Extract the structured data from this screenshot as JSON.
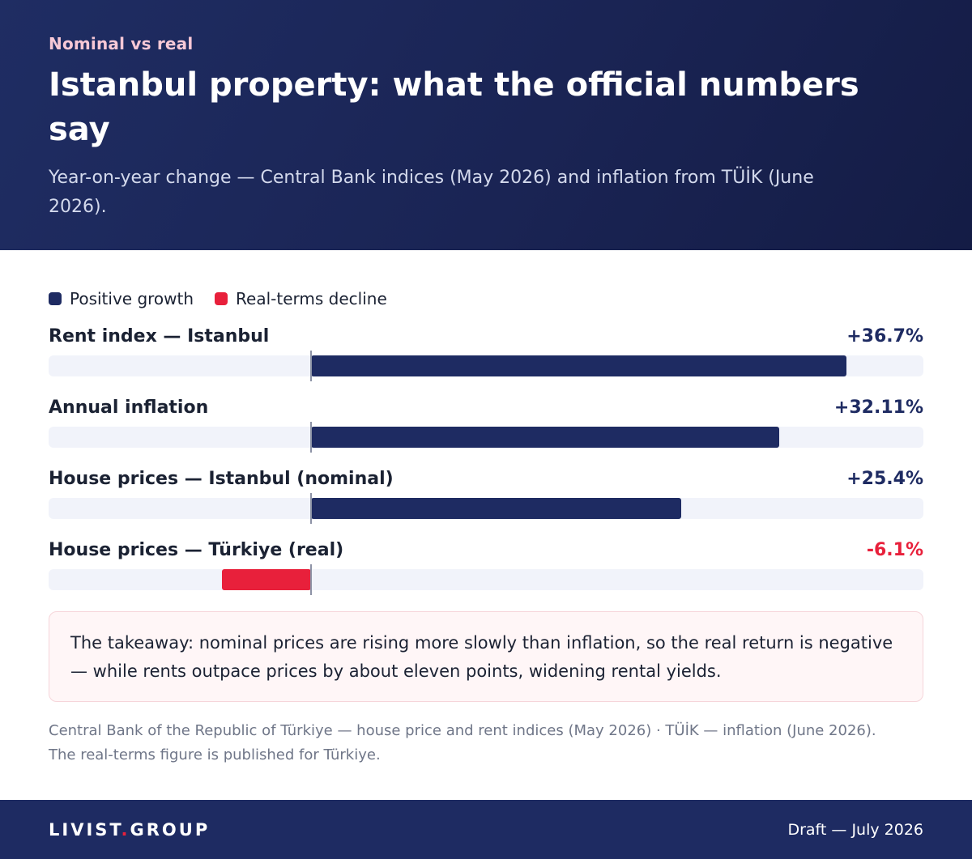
{
  "header": {
    "eyebrow": "Nominal vs real",
    "title": "Istanbul property: what the official numbers say",
    "subtitle": "Year-on-year change — Central Bank indices (May 2026) and inflation from TÜİK (June 2026)."
  },
  "legend": [
    {
      "label": "Positive growth",
      "color": "#1e2b62"
    },
    {
      "label": "Real-terms decline",
      "color": "#e8203b"
    }
  ],
  "chart_data": {
    "type": "bar",
    "orientation": "horizontal",
    "zero_baseline": true,
    "xlim": [
      -18,
      42
    ],
    "grid": false,
    "legend_position": "top-left",
    "categories": [
      "Rent index — Istanbul",
      "Annual inflation",
      "House prices — Istanbul (nominal)",
      "House prices — Türkiye (real)"
    ],
    "values": [
      36.7,
      32.11,
      25.4,
      -6.1
    ],
    "value_labels": [
      "+36.7%",
      "+32.11%",
      "+25.4%",
      "-6.1%"
    ],
    "colors": {
      "positive": "#1e2b62",
      "negative": "#e8203b"
    }
  },
  "callout": {
    "text": "The takeaway: nominal prices are rising more slowly than inflation, so the real return is negative — while rents outpace prices by about eleven points, widening rental yields."
  },
  "source": {
    "line1": "Central Bank of the Republic of Türkiye — house price and rent indices (May 2026) · TÜİK — inflation (June 2026).",
    "line2": "The real-terms figure is published for Türkiye."
  },
  "footer": {
    "brand_part1": "LIVIST",
    "brand_dot": ".",
    "brand_part2": "GROUP",
    "draft": "Draft — July 2026"
  }
}
